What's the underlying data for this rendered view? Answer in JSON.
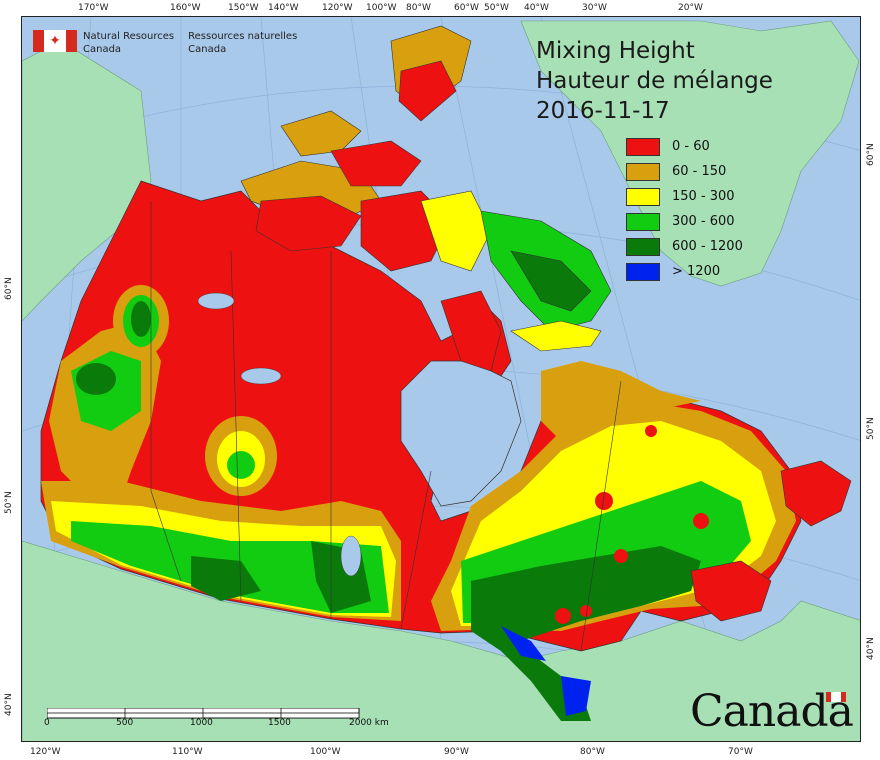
{
  "title": {
    "line1": "Mixing Height",
    "line2": "Hauteur de mélange",
    "line3": "2016-11-17"
  },
  "legend": [
    {
      "label": "0 - 60",
      "color": "#ee1111"
    },
    {
      "label": "60 - 150",
      "color": "#d8a00e"
    },
    {
      "label": "150 - 300",
      "color": "#ffff00"
    },
    {
      "label": "300 - 600",
      "color": "#11cc11"
    },
    {
      "label": "600 - 1200",
      "color": "#0a7a0a"
    },
    {
      "label": "> 1200",
      "color": "#0022ee"
    }
  ],
  "agency": {
    "en_line1": "Natural Resources",
    "en_line2": "Canada",
    "fr_line1": "Ressources naturelles",
    "fr_line2": "Canada"
  },
  "wordmark": "Canada",
  "scalebar": {
    "labels": [
      "0",
      "500",
      "1000",
      "1500",
      "2000 km"
    ]
  },
  "top_ticks": [
    "170°W",
    "160°W",
    "150°W",
    "140°W",
    "120°W",
    "100°W",
    "80°W",
    "60°W",
    "50°W",
    "40°W",
    "30°W",
    "20°W"
  ],
  "bottom_ticks": [
    "120°W",
    "110°W",
    "100°W",
    "90°W",
    "80°W",
    "70°W"
  ],
  "left_ticks": [
    "60°N",
    "50°N",
    "40°N"
  ],
  "right_ticks": [
    "60°N",
    "50°N",
    "40°N"
  ],
  "colors": {
    "ocean": "#a9c9ea",
    "land_other": "#a8e0b6",
    "greenland": "#a8e0b6"
  }
}
